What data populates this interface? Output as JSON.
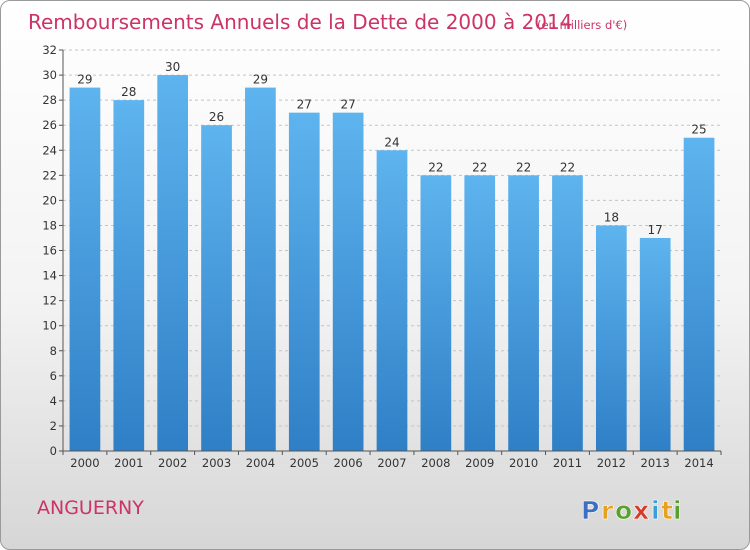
{
  "chart_data": {
    "type": "bar",
    "title": "Remboursements Annuels de la Dette de 2000 à 2014",
    "unit_note": "(en milliers d'€)",
    "categories": [
      "2000",
      "2001",
      "2002",
      "2003",
      "2004",
      "2005",
      "2006",
      "2007",
      "2008",
      "2009",
      "2010",
      "2011",
      "2012",
      "2013",
      "2014"
    ],
    "values": [
      29,
      28,
      30,
      26,
      29,
      27,
      27,
      24,
      22,
      22,
      22,
      22,
      18,
      17,
      25
    ],
    "ylim": [
      0,
      32
    ],
    "yticks": [
      0,
      2,
      4,
      6,
      8,
      10,
      12,
      14,
      16,
      18,
      20,
      22,
      24,
      26,
      28,
      30,
      32
    ],
    "grid": true,
    "bar_color": "#4a9fe0",
    "title_color": "#cc3366"
  },
  "footer": {
    "commune": "ANGUERNY",
    "logo": {
      "letters": [
        "P",
        "r",
        "o",
        "x",
        "i",
        "t",
        "i"
      ],
      "colors": [
        "#3a6fc4",
        "#e8a020",
        "#5aa02c",
        "#d63a2a",
        "#3a9fd8",
        "#e8a020",
        "#5aa02c"
      ]
    }
  }
}
